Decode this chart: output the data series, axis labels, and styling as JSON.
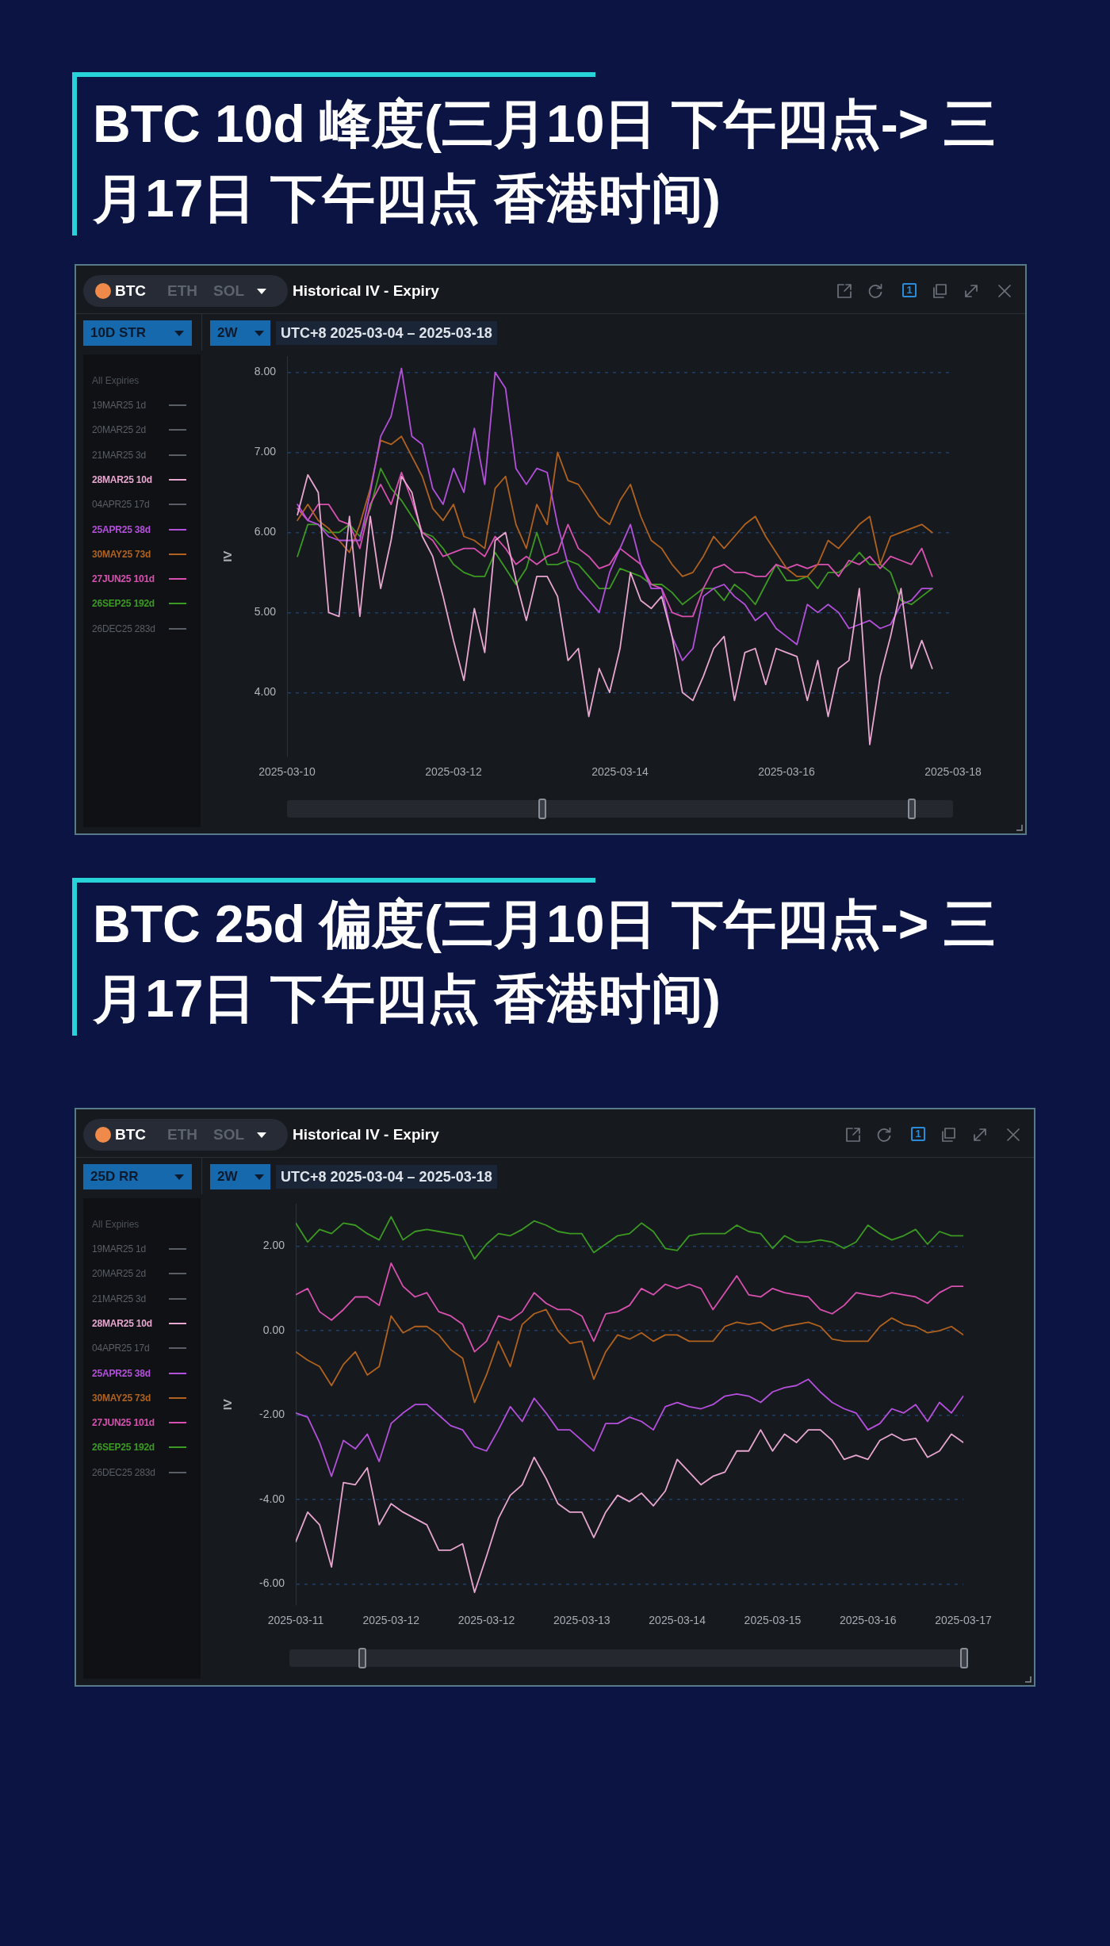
{
  "chart_data": [
    {
      "type": "line",
      "title": "BTC 10d 峰度(三月10日 下午四点-> 三月17日 下午四点 香港时间)",
      "ylabel": "IV",
      "legend_title": "All Expiries",
      "legend": "left",
      "grid": "y",
      "annotations": [
        "BTC",
        "ETH",
        "SOL",
        "Historical IV - Expiry",
        "1",
        "10D STR",
        "2W",
        "UTC+8 2025-03-04 – 2025-03-18"
      ],
      "xlim": [
        "2025-03-10",
        "2025-03-18"
      ],
      "xticks": [
        "2025-03-10",
        "2025-03-12",
        "2025-03-14",
        "2025-03-16",
        "2025-03-18"
      ],
      "ylim": [
        3.2,
        8.2
      ],
      "yticks": [
        {
          "value": 4,
          "label": "4.00"
        },
        {
          "value": 5,
          "label": "5.00"
        },
        {
          "value": 6,
          "label": "6.00"
        },
        {
          "value": 7,
          "label": "7.00"
        },
        {
          "value": 8,
          "label": "8.00"
        }
      ],
      "x": [
        "2025-03-10T03:00",
        "2025-03-10T06:00",
        "2025-03-10T09:00",
        "2025-03-10T12:00",
        "2025-03-10T15:00",
        "2025-03-10T18:00",
        "2025-03-10T21:00",
        "2025-03-11T00:00",
        "2025-03-11T03:00",
        "2025-03-11T06:00",
        "2025-03-11T09:00",
        "2025-03-11T12:00",
        "2025-03-11T15:00",
        "2025-03-11T18:00",
        "2025-03-11T21:00",
        "2025-03-12T00:00",
        "2025-03-12T03:00",
        "2025-03-12T06:00",
        "2025-03-12T09:00",
        "2025-03-12T12:00",
        "2025-03-12T15:00",
        "2025-03-12T18:00",
        "2025-03-12T21:00",
        "2025-03-13T00:00",
        "2025-03-13T03:00",
        "2025-03-13T06:00",
        "2025-03-13T09:00",
        "2025-03-13T12:00",
        "2025-03-13T15:00",
        "2025-03-13T18:00",
        "2025-03-13T21:00",
        "2025-03-14T00:00",
        "2025-03-14T03:00",
        "2025-03-14T06:00",
        "2025-03-14T09:00",
        "2025-03-14T12:00",
        "2025-03-14T15:00",
        "2025-03-14T18:00",
        "2025-03-14T21:00",
        "2025-03-15T00:00",
        "2025-03-15T03:00",
        "2025-03-15T06:00",
        "2025-03-15T09:00",
        "2025-03-15T12:00",
        "2025-03-15T15:00",
        "2025-03-15T18:00",
        "2025-03-15T21:00",
        "2025-03-16T00:00",
        "2025-03-16T03:00",
        "2025-03-16T06:00",
        "2025-03-16T09:00",
        "2025-03-16T12:00",
        "2025-03-16T15:00",
        "2025-03-16T18:00",
        "2025-03-16T21:00",
        "2025-03-17T00:00",
        "2025-03-17T03:00",
        "2025-03-17T06:00",
        "2025-03-17T09:00",
        "2025-03-17T12:00",
        "2025-03-17T15:00",
        "2025-03-17T18:00"
      ],
      "series": [
        {
          "name": "19MAR25 1d",
          "color": "#5a5e66",
          "values": [
            null,
            null,
            null,
            null,
            null,
            null,
            null,
            null,
            null,
            null,
            null,
            null,
            null,
            null,
            null,
            null,
            null,
            null,
            null,
            null,
            null,
            null,
            null,
            null,
            null,
            null,
            null,
            null,
            null,
            null,
            null,
            null,
            null,
            null,
            null,
            null,
            null,
            null,
            null,
            null,
            null,
            null,
            null,
            null,
            null,
            null,
            null,
            null,
            null,
            null,
            null,
            null,
            null,
            null,
            null,
            null,
            null,
            null,
            null,
            null,
            null,
            null
          ]
        },
        {
          "name": "20MAR25 2d",
          "color": "#5a5e66",
          "values": [
            null,
            null,
            null,
            null,
            null,
            null,
            null,
            null,
            null,
            null,
            null,
            null,
            null,
            null,
            null,
            null,
            null,
            null,
            null,
            null,
            null,
            null,
            null,
            null,
            null,
            null,
            null,
            null,
            null,
            null,
            null,
            null,
            null,
            null,
            null,
            null,
            null,
            null,
            null,
            null,
            null,
            null,
            null,
            null,
            null,
            null,
            null,
            null,
            null,
            null,
            null,
            null,
            null,
            null,
            null,
            null,
            null,
            null,
            null,
            null,
            null,
            null
          ]
        },
        {
          "name": "21MAR25 3d",
          "color": "#5a5e66",
          "values": [
            null,
            null,
            null,
            null,
            null,
            null,
            null,
            null,
            null,
            null,
            null,
            null,
            null,
            null,
            null,
            null,
            null,
            null,
            null,
            null,
            null,
            null,
            null,
            null,
            null,
            null,
            null,
            null,
            null,
            null,
            null,
            null,
            null,
            null,
            null,
            null,
            null,
            null,
            null,
            null,
            null,
            null,
            null,
            null,
            null,
            null,
            null,
            null,
            null,
            null,
            null,
            null,
            null,
            null,
            null,
            null,
            null,
            null,
            null,
            null,
            null,
            null
          ]
        },
        {
          "name": "28MAR25 10d",
          "color": "#e8a6d0",
          "values": [
            6.22,
            6.72,
            6.5,
            5.0,
            4.95,
            6.2,
            4.95,
            6.2,
            5.3,
            5.9,
            6.7,
            6.5,
            5.95,
            5.7,
            5.2,
            4.65,
            4.15,
            5.05,
            4.5,
            5.9,
            6.0,
            5.4,
            4.9,
            5.45,
            5.45,
            5.2,
            4.4,
            4.55,
            3.7,
            4.3,
            4.0,
            4.55,
            5.5,
            5.15,
            5.05,
            5.2,
            4.7,
            4.0,
            3.9,
            4.2,
            4.55,
            4.7,
            3.9,
            4.5,
            4.55,
            4.1,
            4.55,
            4.5,
            4.45,
            3.9,
            4.4,
            3.7,
            4.3,
            4.4,
            5.3,
            3.35,
            4.2,
            4.7,
            5.3,
            4.3,
            4.65,
            4.3
          ]
        },
        {
          "name": "04APR25 17d",
          "color": "#5a5e66",
          "values": [
            null,
            null,
            null,
            null,
            null,
            null,
            null,
            null,
            null,
            null,
            null,
            null,
            null,
            null,
            null,
            null,
            null,
            null,
            null,
            null,
            null,
            null,
            null,
            null,
            null,
            null,
            null,
            null,
            null,
            null,
            null,
            null,
            null,
            null,
            null,
            null,
            null,
            null,
            null,
            null,
            null,
            null,
            null,
            null,
            null,
            null,
            null,
            null,
            null,
            null,
            null,
            null,
            null,
            null,
            null,
            null,
            null,
            null,
            null,
            null,
            null,
            null
          ]
        },
        {
          "name": "25APR25 38d",
          "color": "#b450dc",
          "values": [
            6.35,
            6.15,
            6.1,
            5.95,
            5.9,
            5.9,
            5.9,
            6.5,
            7.2,
            7.45,
            8.05,
            7.2,
            7.1,
            6.55,
            6.35,
            6.8,
            6.5,
            7.3,
            6.6,
            8.0,
            7.8,
            6.8,
            6.6,
            6.8,
            6.75,
            6.1,
            5.6,
            5.3,
            5.15,
            5.0,
            5.5,
            5.8,
            6.1,
            5.6,
            5.3,
            5.3,
            4.7,
            4.4,
            4.55,
            5.2,
            5.3,
            5.35,
            5.2,
            5.1,
            4.9,
            5.0,
            4.8,
            4.7,
            4.6,
            5.1,
            5.0,
            5.1,
            5.0,
            4.8,
            4.85,
            4.9,
            4.8,
            4.85,
            5.1,
            5.15,
            5.3,
            5.3
          ]
        },
        {
          "name": "30MAY25 73d",
          "color": "#b0621e",
          "values": [
            6.15,
            6.35,
            6.15,
            6.05,
            5.9,
            5.75,
            6.1,
            6.55,
            7.15,
            7.1,
            7.2,
            6.95,
            6.7,
            6.3,
            6.15,
            6.35,
            5.95,
            5.9,
            5.8,
            6.55,
            6.7,
            6.1,
            5.8,
            6.35,
            6.1,
            7.0,
            6.65,
            6.6,
            6.4,
            6.2,
            6.1,
            6.4,
            6.6,
            6.2,
            5.9,
            5.8,
            5.6,
            5.45,
            5.5,
            5.7,
            5.95,
            5.8,
            5.95,
            6.1,
            6.2,
            5.95,
            5.75,
            5.55,
            5.45,
            5.45,
            5.6,
            5.9,
            5.8,
            5.95,
            6.1,
            6.2,
            5.6,
            5.95,
            6.0,
            6.05,
            6.1,
            6.0
          ]
        },
        {
          "name": "27JUN25 101d",
          "color": "#d850b0",
          "values": [
            6.3,
            6.15,
            6.35,
            6.35,
            6.15,
            6.1,
            5.8,
            6.35,
            6.6,
            6.35,
            6.75,
            6.4,
            6.0,
            5.9,
            5.7,
            5.75,
            5.8,
            5.8,
            5.7,
            5.95,
            5.8,
            5.6,
            5.7,
            5.6,
            5.7,
            5.75,
            6.1,
            5.8,
            5.7,
            5.55,
            5.6,
            5.8,
            5.7,
            5.6,
            5.35,
            5.3,
            5.0,
            4.95,
            4.95,
            5.3,
            5.55,
            5.6,
            5.5,
            5.5,
            5.45,
            5.45,
            5.6,
            5.55,
            5.6,
            5.55,
            5.6,
            5.6,
            5.45,
            5.65,
            5.6,
            5.7,
            5.55,
            5.7,
            5.65,
            5.6,
            5.8,
            5.45
          ]
        },
        {
          "name": "26SEP25 192d",
          "color": "#3c9a22",
          "values": [
            5.7,
            6.1,
            6.1,
            6.0,
            6.0,
            6.1,
            5.95,
            6.3,
            6.8,
            6.55,
            6.4,
            6.2,
            6.0,
            5.95,
            5.8,
            5.6,
            5.5,
            5.45,
            5.45,
            5.75,
            5.55,
            5.35,
            5.55,
            6.0,
            5.6,
            5.6,
            5.65,
            5.6,
            5.45,
            5.3,
            5.3,
            5.55,
            5.5,
            5.45,
            5.35,
            5.35,
            5.25,
            5.1,
            5.2,
            5.3,
            5.3,
            5.15,
            5.35,
            5.25,
            5.1,
            5.35,
            5.6,
            5.4,
            5.4,
            5.45,
            5.3,
            5.5,
            5.5,
            5.6,
            5.75,
            5.6,
            5.6,
            5.5,
            5.15,
            5.1,
            5.2,
            5.3
          ]
        },
        {
          "name": "26DEC25 283d",
          "color": "#5a5e66",
          "values": [
            null,
            null,
            null,
            null,
            null,
            null,
            null,
            null,
            null,
            null,
            null,
            null,
            null,
            null,
            null,
            null,
            null,
            null,
            null,
            null,
            null,
            null,
            null,
            null,
            null,
            null,
            null,
            null,
            null,
            null,
            null,
            null,
            null,
            null,
            null,
            null,
            null,
            null,
            null,
            null,
            null,
            null,
            null,
            null,
            null,
            null,
            null,
            null,
            null,
            null,
            null,
            null,
            null,
            null,
            null,
            null,
            null,
            null,
            null,
            null,
            null,
            null
          ]
        }
      ]
    },
    {
      "type": "line",
      "title": "BTC 25d 偏度(三月10日 下午四点-> 三月17日 下午四点 香港时间)",
      "ylabel": "IV",
      "legend_title": "All Expiries",
      "legend": "left",
      "grid": "y",
      "annotations": [
        "BTC",
        "ETH",
        "SOL",
        "Historical IV - Expiry",
        "1",
        "25D RR",
        "2W",
        "UTC+8 2025-03-04 – 2025-03-18"
      ],
      "xlim": [
        "2025-03-10T16:00",
        "2025-03-17T16:00"
      ],
      "xticks": [
        {
          "value": "2025-03-10T16:00",
          "label": "2025-03-11"
        },
        {
          "value": "2025-03-11T16:00",
          "label": "2025-03-12"
        },
        {
          "value": "2025-03-12T16:00",
          "label": "2025-03-12"
        },
        {
          "value": "2025-03-13T16:00",
          "label": "2025-03-13"
        },
        {
          "value": "2025-03-14T16:00",
          "label": "2025-03-14"
        },
        {
          "value": "2025-03-15T16:00",
          "label": "2025-03-15"
        },
        {
          "value": "2025-03-16T16:00",
          "label": "2025-03-16"
        },
        {
          "value": "2025-03-17T16:00",
          "label": "2025-03-17"
        }
      ],
      "ylim": [
        -6.5,
        3.0
      ],
      "yticks": [
        {
          "value": -6,
          "label": "-6.00"
        },
        {
          "value": -4,
          "label": "-4.00"
        },
        {
          "value": -2,
          "label": "-2.00"
        },
        {
          "value": 0,
          "label": "0.00"
        },
        {
          "value": 2,
          "label": "2.00"
        }
      ],
      "x": [
        "2025-03-10T16:00",
        "2025-03-10T19:00",
        "2025-03-10T22:00",
        "2025-03-11T01:00",
        "2025-03-11T04:00",
        "2025-03-11T07:00",
        "2025-03-11T10:00",
        "2025-03-11T13:00",
        "2025-03-11T16:00",
        "2025-03-11T19:00",
        "2025-03-11T22:00",
        "2025-03-12T01:00",
        "2025-03-12T04:00",
        "2025-03-12T07:00",
        "2025-03-12T10:00",
        "2025-03-12T13:00",
        "2025-03-12T16:00",
        "2025-03-12T19:00",
        "2025-03-12T22:00",
        "2025-03-13T01:00",
        "2025-03-13T04:00",
        "2025-03-13T07:00",
        "2025-03-13T10:00",
        "2025-03-13T13:00",
        "2025-03-13T16:00",
        "2025-03-13T19:00",
        "2025-03-13T22:00",
        "2025-03-14T01:00",
        "2025-03-14T04:00",
        "2025-03-14T07:00",
        "2025-03-14T10:00",
        "2025-03-14T13:00",
        "2025-03-14T16:00",
        "2025-03-14T19:00",
        "2025-03-14T22:00",
        "2025-03-15T01:00",
        "2025-03-15T04:00",
        "2025-03-15T07:00",
        "2025-03-15T10:00",
        "2025-03-15T13:00",
        "2025-03-15T16:00",
        "2025-03-15T19:00",
        "2025-03-15T22:00",
        "2025-03-16T01:00",
        "2025-03-16T04:00",
        "2025-03-16T07:00",
        "2025-03-16T10:00",
        "2025-03-16T13:00",
        "2025-03-16T16:00",
        "2025-03-16T19:00",
        "2025-03-16T22:00",
        "2025-03-17T01:00",
        "2025-03-17T04:00",
        "2025-03-17T07:00",
        "2025-03-17T10:00",
        "2025-03-17T13:00",
        "2025-03-17T16:00"
      ],
      "series": [
        {
          "name": "19MAR25 1d",
          "color": "#5a5e66",
          "values": [
            null,
            null,
            null,
            null,
            null,
            null,
            null,
            null,
            null,
            null,
            null,
            null,
            null,
            null,
            null,
            null,
            null,
            null,
            null,
            null,
            null,
            null,
            null,
            null,
            null,
            null,
            null,
            null,
            null,
            null,
            null,
            null,
            null,
            null,
            null,
            null,
            null,
            null,
            null,
            null,
            null,
            null,
            null,
            null,
            null,
            null,
            null,
            null,
            null,
            null,
            null,
            null,
            null,
            null,
            null,
            null,
            null
          ]
        },
        {
          "name": "20MAR25 2d",
          "color": "#5a5e66",
          "values": [
            null,
            null,
            null,
            null,
            null,
            null,
            null,
            null,
            null,
            null,
            null,
            null,
            null,
            null,
            null,
            null,
            null,
            null,
            null,
            null,
            null,
            null,
            null,
            null,
            null,
            null,
            null,
            null,
            null,
            null,
            null,
            null,
            null,
            null,
            null,
            null,
            null,
            null,
            null,
            null,
            null,
            null,
            null,
            null,
            null,
            null,
            null,
            null,
            null,
            null,
            null,
            null,
            null,
            null,
            null,
            null,
            null
          ]
        },
        {
          "name": "21MAR25 3d",
          "color": "#5a5e66",
          "values": [
            null,
            null,
            null,
            null,
            null,
            null,
            null,
            null,
            null,
            null,
            null,
            null,
            null,
            null,
            null,
            null,
            null,
            null,
            null,
            null,
            null,
            null,
            null,
            null,
            null,
            null,
            null,
            null,
            null,
            null,
            null,
            null,
            null,
            null,
            null,
            null,
            null,
            null,
            null,
            null,
            null,
            null,
            null,
            null,
            null,
            null,
            null,
            null,
            null,
            null,
            null,
            null,
            null,
            null,
            null,
            null,
            null
          ]
        },
        {
          "name": "28MAR25 10d",
          "color": "#e8a6d0",
          "values": [
            -5.0,
            -4.3,
            -4.6,
            -5.6,
            -3.6,
            -3.65,
            -3.25,
            -4.6,
            -4.1,
            -4.3,
            -4.45,
            -4.6,
            -5.2,
            -5.2,
            -5.05,
            -6.2,
            -5.35,
            -4.45,
            -3.9,
            -3.65,
            -3.0,
            -3.5,
            -4.1,
            -4.3,
            -4.3,
            -4.9,
            -4.3,
            -3.9,
            -4.05,
            -3.85,
            -4.15,
            -3.8,
            -3.05,
            -3.35,
            -3.65,
            -3.45,
            -3.35,
            -2.85,
            -2.85,
            -2.35,
            -2.85,
            -2.45,
            -2.65,
            -2.35,
            -2.35,
            -2.6,
            -3.05,
            -2.95,
            -3.05,
            -2.6,
            -2.45,
            -2.6,
            -2.55,
            -3.0,
            -2.85,
            -2.45,
            -2.65
          ]
        },
        {
          "name": "04APR25 17d",
          "color": "#5a5e66",
          "values": [
            null,
            null,
            null,
            null,
            null,
            null,
            null,
            null,
            null,
            null,
            null,
            null,
            null,
            null,
            null,
            null,
            null,
            null,
            null,
            null,
            null,
            null,
            null,
            null,
            null,
            null,
            null,
            null,
            null,
            null,
            null,
            null,
            null,
            null,
            null,
            null,
            null,
            null,
            null,
            null,
            null,
            null,
            null,
            null,
            null,
            null,
            null,
            null,
            null,
            null,
            null,
            null,
            null,
            null,
            null,
            null,
            null
          ]
        },
        {
          "name": "25APR25 38d",
          "color": "#b450dc",
          "values": [
            -1.95,
            -2.05,
            -2.65,
            -3.45,
            -2.6,
            -2.8,
            -2.45,
            -3.1,
            -2.2,
            -1.95,
            -1.75,
            -1.75,
            -2.0,
            -2.25,
            -2.35,
            -2.75,
            -2.85,
            -2.35,
            -1.8,
            -2.15,
            -1.6,
            -1.95,
            -2.35,
            -2.35,
            -2.6,
            -2.85,
            -2.2,
            -2.2,
            -2.05,
            -2.15,
            -2.35,
            -1.8,
            -1.7,
            -1.8,
            -1.85,
            -1.75,
            -1.55,
            -1.5,
            -1.55,
            -1.7,
            -1.45,
            -1.35,
            -1.3,
            -1.15,
            -1.45,
            -1.7,
            -1.85,
            -1.95,
            -2.35,
            -2.2,
            -1.85,
            -1.95,
            -1.75,
            -2.15,
            -1.7,
            -1.95,
            -1.55
          ]
        },
        {
          "name": "30MAY25 73d",
          "color": "#b0621e",
          "values": [
            -0.5,
            -0.7,
            -0.85,
            -1.3,
            -0.8,
            -0.5,
            -1.05,
            -0.85,
            0.35,
            -0.05,
            0.1,
            0.1,
            -0.1,
            -0.45,
            -0.65,
            -1.7,
            -1.05,
            -0.25,
            -0.85,
            0.15,
            0.4,
            0.5,
            0.0,
            -0.3,
            -0.25,
            -1.15,
            -0.5,
            -0.1,
            -0.2,
            -0.05,
            -0.25,
            -0.1,
            -0.1,
            -0.25,
            -0.25,
            -0.25,
            0.1,
            0.2,
            0.15,
            0.2,
            0.0,
            0.1,
            0.15,
            0.2,
            0.1,
            -0.2,
            -0.25,
            -0.25,
            -0.25,
            0.1,
            0.3,
            0.15,
            0.1,
            -0.05,
            0.0,
            0.1,
            -0.1
          ]
        },
        {
          "name": "27JUN25 101d",
          "color": "#d850b0",
          "values": [
            0.85,
            1.0,
            0.45,
            0.25,
            0.5,
            0.8,
            0.8,
            0.6,
            1.6,
            1.05,
            0.8,
            0.9,
            0.45,
            0.35,
            0.15,
            -0.5,
            -0.25,
            0.35,
            0.25,
            0.45,
            0.9,
            0.65,
            0.5,
            0.5,
            0.35,
            -0.25,
            0.4,
            0.45,
            0.6,
            1.0,
            0.85,
            1.1,
            1.0,
            1.1,
            1.0,
            0.5,
            0.9,
            1.3,
            0.85,
            0.8,
            1.0,
            0.9,
            0.85,
            0.8,
            0.5,
            0.4,
            0.6,
            0.9,
            0.85,
            0.8,
            0.9,
            0.85,
            0.8,
            0.65,
            0.9,
            1.05,
            1.05
          ]
        },
        {
          "name": "26SEP25 192d",
          "color": "#3c9a22",
          "values": [
            2.55,
            2.1,
            2.4,
            2.3,
            2.55,
            2.5,
            2.3,
            2.15,
            2.7,
            2.15,
            2.35,
            2.4,
            2.35,
            2.3,
            2.25,
            1.7,
            2.05,
            2.3,
            2.25,
            2.4,
            2.6,
            2.5,
            2.35,
            2.3,
            2.3,
            1.85,
            2.05,
            2.25,
            2.3,
            2.55,
            2.35,
            1.95,
            1.9,
            2.25,
            2.3,
            2.3,
            2.3,
            2.5,
            2.35,
            2.3,
            1.95,
            2.25,
            2.1,
            2.1,
            2.15,
            2.1,
            1.95,
            2.1,
            2.5,
            2.3,
            2.15,
            2.25,
            2.4,
            2.05,
            2.35,
            2.25,
            2.25
          ]
        },
        {
          "name": "26DEC25 283d",
          "color": "#5a5e66",
          "values": [
            null,
            null,
            null,
            null,
            null,
            null,
            null,
            null,
            null,
            null,
            null,
            null,
            null,
            null,
            null,
            null,
            null,
            null,
            null,
            null,
            null,
            null,
            null,
            null,
            null,
            null,
            null,
            null,
            null,
            null,
            null,
            null,
            null,
            null,
            null,
            null,
            null,
            null,
            null,
            null,
            null,
            null,
            null,
            null,
            null,
            null,
            null,
            null,
            null,
            null,
            null,
            null,
            null,
            null,
            null,
            null,
            null
          ]
        }
      ]
    }
  ]
}
